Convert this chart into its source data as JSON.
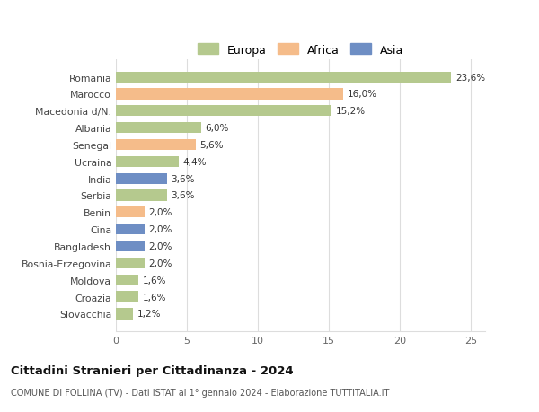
{
  "categories": [
    "Romania",
    "Marocco",
    "Macedonia d/N.",
    "Albania",
    "Senegal",
    "Ucraina",
    "India",
    "Serbia",
    "Benin",
    "Cina",
    "Bangladesh",
    "Bosnia-Erzegovina",
    "Moldova",
    "Croazia",
    "Slovacchia"
  ],
  "values": [
    23.6,
    16.0,
    15.2,
    6.0,
    5.6,
    4.4,
    3.6,
    3.6,
    2.0,
    2.0,
    2.0,
    2.0,
    1.6,
    1.6,
    1.2
  ],
  "continents": [
    "Europa",
    "Africa",
    "Europa",
    "Europa",
    "Africa",
    "Europa",
    "Asia",
    "Europa",
    "Africa",
    "Asia",
    "Asia",
    "Europa",
    "Europa",
    "Europa",
    "Europa"
  ],
  "colors": {
    "Europa": "#b5c98e",
    "Africa": "#f5bc8a",
    "Asia": "#6e8ec4"
  },
  "legend_labels": [
    "Europa",
    "Africa",
    "Asia"
  ],
  "title": "Cittadini Stranieri per Cittadinanza - 2024",
  "subtitle": "COMUNE DI FOLLINA (TV) - Dati ISTAT al 1° gennaio 2024 - Elaborazione TUTTITALIA.IT",
  "xlim": [
    0,
    26
  ],
  "xticks": [
    0,
    5,
    10,
    15,
    20,
    25
  ],
  "background_color": "#ffffff",
  "grid_color": "#dddddd"
}
